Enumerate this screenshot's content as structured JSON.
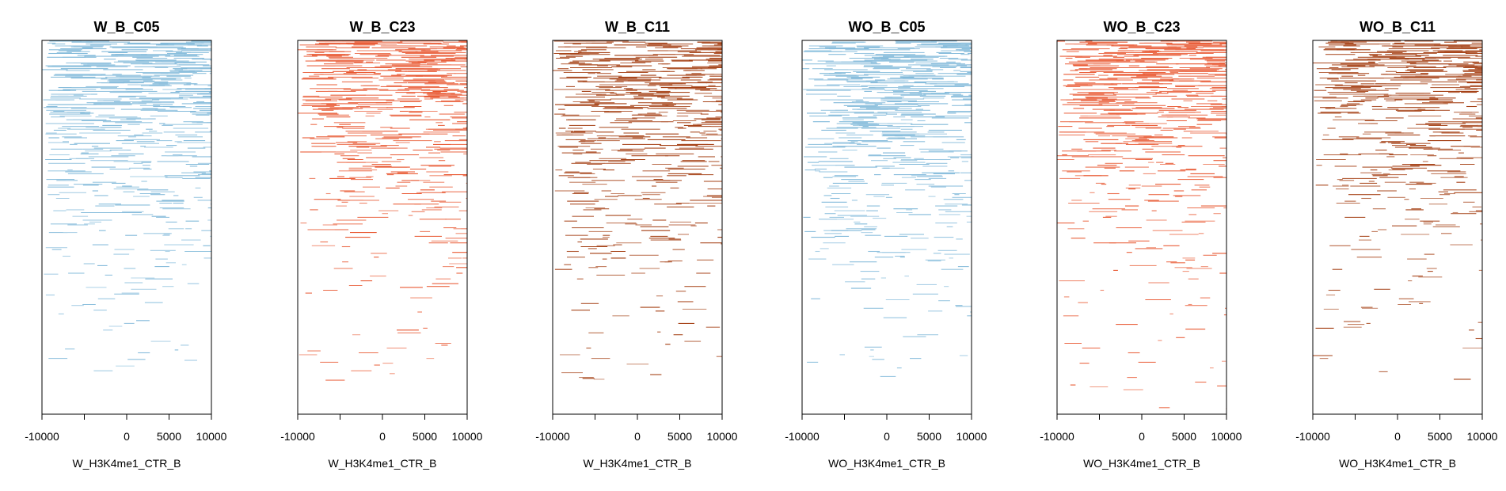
{
  "chart_data": [
    {
      "type": "heatmap",
      "title": "W_B_C05",
      "xlabel": "W_H3K4me1_CTR_B",
      "xlim": [
        -10000,
        10000
      ],
      "x_ticks": [
        -10000,
        -5000,
        0,
        5000,
        10000
      ],
      "x_tick_labels": [
        "-10000",
        "",
        "0",
        "5000",
        "10000"
      ],
      "color": "#7fb8d9",
      "density_top_to_bottom": [
        0.95,
        0.8,
        0.6,
        0.45,
        0.3,
        0.18,
        0.08
      ]
    },
    {
      "type": "heatmap",
      "title": "W_B_C23",
      "xlabel": "W_H3K4me1_CTR_B",
      "xlim": [
        -10000,
        10000
      ],
      "x_ticks": [
        -10000,
        -5000,
        0,
        5000,
        10000
      ],
      "x_tick_labels": [
        "-10000",
        "",
        "0",
        "5000",
        "10000"
      ],
      "color": "#e8552e",
      "density_top_to_bottom": [
        0.95,
        0.75,
        0.55,
        0.4,
        0.28,
        0.18,
        0.08
      ]
    },
    {
      "type": "heatmap",
      "title": "W_B_C11",
      "xlabel": "W_H3K4me1_CTR_B",
      "xlim": [
        -10000,
        10000
      ],
      "x_ticks": [
        -10000,
        -5000,
        0,
        5000,
        10000
      ],
      "x_tick_labels": [
        "-10000",
        "",
        "0",
        "5000",
        "10000"
      ],
      "color": "#a23a0d",
      "density_top_to_bottom": [
        0.95,
        0.75,
        0.6,
        0.45,
        0.32,
        0.2,
        0.1
      ]
    },
    {
      "type": "heatmap",
      "title": "WO_B_C05",
      "xlabel": "WO_H3K4me1_CTR_B",
      "xlim": [
        -10000,
        10000
      ],
      "x_ticks": [
        -10000,
        -5000,
        0,
        5000,
        10000
      ],
      "x_tick_labels": [
        "-10000",
        "",
        "0",
        "5000",
        "10000"
      ],
      "color": "#7fb8d9",
      "density_top_to_bottom": [
        0.95,
        0.8,
        0.6,
        0.45,
        0.3,
        0.18,
        0.08
      ]
    },
    {
      "type": "heatmap",
      "title": "WO_B_C23",
      "xlabel": "WO_H3K4me1_CTR_B",
      "xlim": [
        -10000,
        10000
      ],
      "x_ticks": [
        -10000,
        -5000,
        0,
        5000,
        10000
      ],
      "x_tick_labels": [
        "-10000",
        "",
        "0",
        "5000",
        "10000"
      ],
      "color": "#e8552e",
      "density_top_to_bottom": [
        0.95,
        0.75,
        0.55,
        0.4,
        0.3,
        0.2,
        0.1
      ]
    },
    {
      "type": "heatmap",
      "title": "WO_B_C11",
      "xlabel": "WO_H3K4me1_CTR_B",
      "xlim": [
        -10000,
        10000
      ],
      "x_ticks": [
        -10000,
        -5000,
        0,
        5000,
        10000
      ],
      "x_tick_labels": [
        "-10000",
        "",
        "0",
        "5000",
        "10000"
      ],
      "color": "#a23a0d",
      "density_top_to_bottom": [
        0.95,
        0.75,
        0.55,
        0.4,
        0.28,
        0.18,
        0.08
      ]
    }
  ]
}
